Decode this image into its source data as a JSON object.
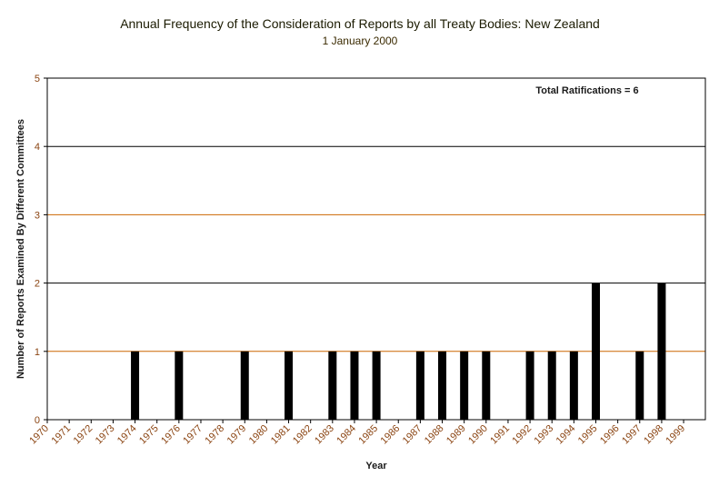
{
  "chart_data": {
    "type": "bar",
    "title": "Annual Frequency of the Consideration of Reports by all Treaty Bodies: New Zealand",
    "subtitle": "1 January 2000",
    "xlabel": "Year",
    "ylabel": "Number of Reports Examined By Different Committees",
    "ylim": [
      0,
      5
    ],
    "yticks": [
      0,
      1,
      2,
      3,
      4,
      5
    ],
    "annotation": "Total Ratifications = 6",
    "categories": [
      "1970",
      "1971",
      "1972",
      "1973",
      "1974",
      "1975",
      "1976",
      "1977",
      "1978",
      "1979",
      "1980",
      "1981",
      "1982",
      "1983",
      "1984",
      "1985",
      "1986",
      "1987",
      "1988",
      "1989",
      "1990",
      "1991",
      "1992",
      "1993",
      "1994",
      "1995",
      "1996",
      "1997",
      "1998",
      "1999"
    ],
    "values": [
      0,
      0,
      0,
      0,
      1,
      0,
      1,
      0,
      0,
      1,
      0,
      1,
      0,
      1,
      1,
      1,
      0,
      1,
      1,
      1,
      1,
      0,
      1,
      1,
      1,
      2,
      0,
      1,
      2,
      0
    ],
    "colors": {
      "bar": "#000000",
      "grid_major": "#000000",
      "grid_minor": "#cc6600",
      "tick_text": "#8b4513"
    }
  }
}
